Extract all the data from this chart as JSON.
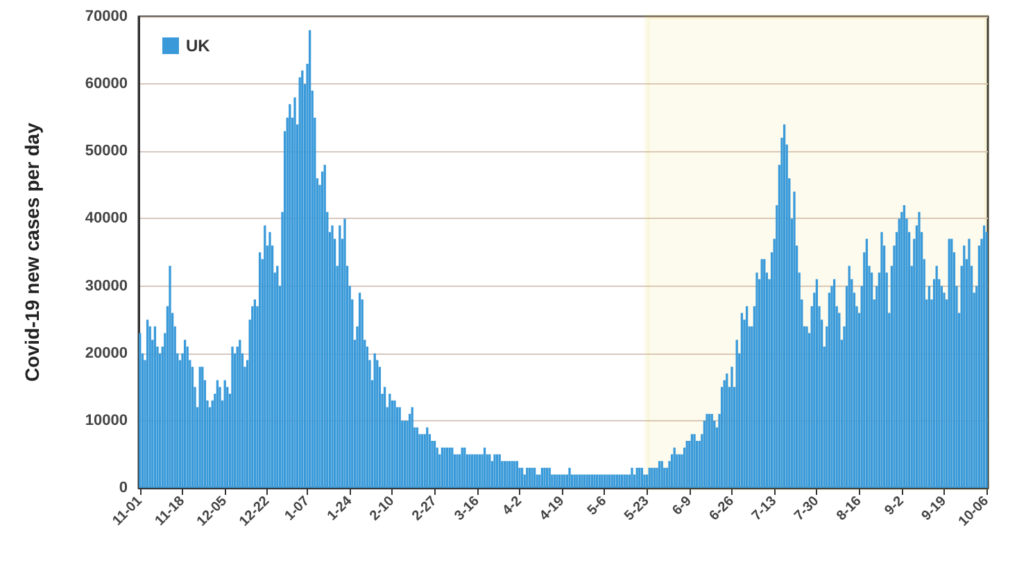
{
  "chart_data": {
    "type": "bar",
    "ylabel": "Covid-19 new cases per day",
    "categories": [
      "11-01",
      null,
      null,
      null,
      null,
      null,
      null,
      null,
      null,
      null,
      null,
      null,
      null,
      null,
      null,
      null,
      null,
      "11-18",
      null,
      null,
      null,
      null,
      null,
      null,
      null,
      null,
      null,
      null,
      null,
      null,
      null,
      null,
      null,
      null,
      "12-05",
      null,
      null,
      null,
      null,
      null,
      null,
      null,
      null,
      null,
      null,
      null,
      null,
      null,
      null,
      null,
      null,
      "12-22",
      null,
      null,
      null,
      null,
      null,
      null,
      null,
      null,
      null,
      null,
      null,
      null,
      null,
      null,
      null,
      "1-07",
      null,
      null,
      null,
      null,
      null,
      null,
      null,
      null,
      null,
      null,
      null,
      null,
      null,
      null,
      null,
      null,
      "1-24",
      null,
      null,
      null,
      null,
      null,
      null,
      null,
      null,
      null,
      null,
      null,
      null,
      null,
      null,
      null,
      null,
      "2-10",
      null,
      null,
      null,
      null,
      null,
      null,
      null,
      null,
      null,
      null,
      null,
      null,
      null,
      null,
      null,
      null,
      "2-27",
      null,
      null,
      null,
      null,
      null,
      null,
      null,
      null,
      null,
      null,
      null,
      null,
      null,
      null,
      null,
      null,
      "3-16",
      null,
      null,
      null,
      null,
      null,
      null,
      null,
      null,
      null,
      null,
      null,
      null,
      null,
      null,
      null,
      null,
      "4-2",
      null,
      null,
      null,
      null,
      null,
      null,
      null,
      null,
      null,
      null,
      null,
      null,
      null,
      null,
      null,
      null,
      "4-19",
      null,
      null,
      null,
      null,
      null,
      null,
      null,
      null,
      null,
      null,
      null,
      null,
      null,
      null,
      null,
      null,
      "5-6",
      null,
      null,
      null,
      null,
      null,
      null,
      null,
      null,
      null,
      null,
      null,
      null,
      null,
      null,
      null,
      null,
      "5-23",
      null,
      null,
      null,
      null,
      null,
      null,
      null,
      null,
      null,
      null,
      null,
      null,
      null,
      null,
      null,
      null,
      "6-9",
      null,
      null,
      null,
      null,
      null,
      null,
      null,
      null,
      null,
      null,
      null,
      null,
      null,
      null,
      null,
      null,
      "6-26",
      null,
      null,
      null,
      null,
      null,
      null,
      null,
      null,
      null,
      null,
      null,
      null,
      null,
      null,
      null,
      null,
      "7-13",
      null,
      null,
      null,
      null,
      null,
      null,
      null,
      null,
      null,
      null,
      null,
      null,
      null,
      null,
      null,
      null,
      "7-30",
      null,
      null,
      null,
      null,
      null,
      null,
      null,
      null,
      null,
      null,
      null,
      null,
      null,
      null,
      null,
      null,
      "8-16",
      null,
      null,
      null,
      null,
      null,
      null,
      null,
      null,
      null,
      null,
      null,
      null,
      null,
      null,
      null,
      null,
      "9-2",
      null,
      null,
      null,
      null,
      null,
      null,
      null,
      null,
      null,
      null,
      null,
      null,
      null,
      null,
      null,
      null,
      "9-19",
      null,
      null,
      null,
      null,
      null,
      null,
      null,
      null,
      null,
      null,
      null,
      null,
      null,
      null,
      null,
      null,
      "10-06"
    ],
    "series": [
      {
        "name": "UK",
        "color": "#3a9ad9",
        "values": [
          23000,
          20000,
          19000,
          25000,
          24000,
          22000,
          24000,
          21000,
          20000,
          21000,
          23000,
          27000,
          33000,
          26000,
          24000,
          20000,
          19000,
          20000,
          22000,
          21000,
          19000,
          18000,
          15000,
          12000,
          18000,
          18000,
          16000,
          13000,
          12000,
          13000,
          14000,
          16000,
          15000,
          13000,
          16000,
          15000,
          14000,
          21000,
          20000,
          21000,
          22000,
          20000,
          18000,
          19000,
          25000,
          27000,
          28000,
          27000,
          35000,
          34000,
          39000,
          36000,
          38000,
          36000,
          32000,
          33000,
          30000,
          41000,
          53000,
          55000,
          57000,
          55000,
          58000,
          54000,
          61000,
          62000,
          60000,
          63000,
          68000,
          59000,
          55000,
          46000,
          45000,
          47000,
          48000,
          41000,
          38000,
          39000,
          37000,
          33000,
          39000,
          37000,
          40000,
          33000,
          30000,
          28000,
          22000,
          24000,
          29000,
          28000,
          22000,
          21000,
          19000,
          16000,
          20000,
          19000,
          18000,
          14000,
          15000,
          12000,
          14000,
          13000,
          13000,
          12000,
          12000,
          10000,
          10000,
          10000,
          11000,
          12000,
          9000,
          9000,
          8000,
          8000,
          8000,
          9000,
          8000,
          7000,
          7000,
          6000,
          5000,
          6000,
          6000,
          6000,
          6000,
          6000,
          5000,
          5000,
          5000,
          6000,
          6000,
          5000,
          5000,
          5000,
          5000,
          5000,
          5000,
          5000,
          6000,
          5000,
          5000,
          4000,
          5000,
          5000,
          5000,
          4000,
          4000,
          4000,
          4000,
          4000,
          4000,
          4000,
          3000,
          3000,
          2000,
          3000,
          3000,
          3000,
          3000,
          2000,
          2000,
          3000,
          3000,
          3000,
          3000,
          2000,
          2000,
          2000,
          2000,
          2000,
          2000,
          2000,
          3000,
          2000,
          2000,
          2000,
          2000,
          2000,
          2000,
          2000,
          2000,
          2000,
          2000,
          2000,
          2000,
          2000,
          2000,
          2000,
          2000,
          2000,
          2000,
          2000,
          2000,
          2000,
          2000,
          2000,
          2000,
          3000,
          2000,
          3000,
          3000,
          3000,
          2000,
          2000,
          3000,
          3000,
          3000,
          3000,
          4000,
          4000,
          3000,
          3000,
          4000,
          5000,
          6000,
          5000,
          5000,
          5000,
          6000,
          7000,
          7000,
          8000,
          8000,
          7000,
          7000,
          8000,
          10000,
          11000,
          11000,
          11000,
          10000,
          9000,
          11000,
          15000,
          16000,
          17000,
          15000,
          18000,
          15000,
          22000,
          20000,
          26000,
          25000,
          27000,
          24000,
          24000,
          27000,
          32000,
          31000,
          34000,
          34000,
          32000,
          31000,
          35000,
          37000,
          42000,
          48000,
          52000,
          54000,
          51000,
          46000,
          40000,
          44000,
          36000,
          32000,
          28000,
          24000,
          24000,
          23000,
          27000,
          29000,
          31000,
          27000,
          25000,
          21000,
          24000,
          29000,
          30000,
          31000,
          27000,
          26000,
          22000,
          24000,
          30000,
          33000,
          31000,
          29000,
          27000,
          26000,
          30000,
          35000,
          37000,
          33000,
          32000,
          28000,
          30000,
          32000,
          38000,
          36000,
          32000,
          26000,
          33000,
          36000,
          38000,
          40000,
          41000,
          42000,
          40000,
          38000,
          33000,
          37000,
          39000,
          41000,
          38000,
          34000,
          28000,
          30000,
          28000,
          31000,
          33000,
          31000,
          30000,
          29000,
          28000,
          37000,
          37000,
          35000,
          30000,
          26000,
          33000,
          36000,
          34000,
          37000,
          33000,
          29000,
          30000,
          36000,
          37000,
          39000,
          38000
        ]
      }
    ],
    "ylim": [
      0,
      70000
    ],
    "yticks": [
      0,
      10000,
      20000,
      30000,
      40000,
      50000,
      60000,
      70000
    ],
    "grid": "y",
    "legend": "top left",
    "bands": [
      {
        "axis": "x",
        "from": "5-23",
        "to": "10-06",
        "color": "#e8c626"
      }
    ]
  }
}
